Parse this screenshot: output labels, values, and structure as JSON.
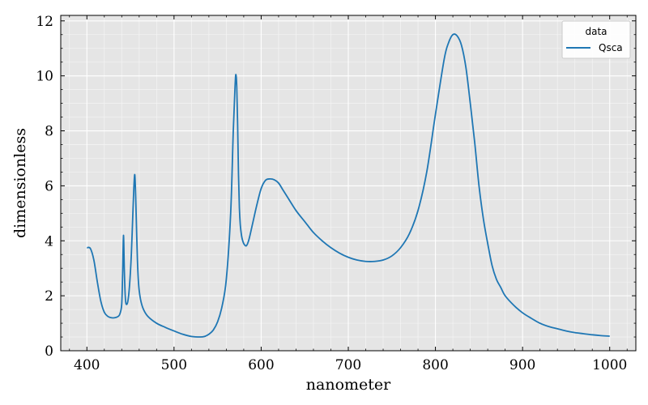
{
  "chart_data": {
    "type": "line",
    "title": "",
    "xlabel": "nanometer",
    "ylabel": "dimensionless",
    "xlim": [
      370,
      1030
    ],
    "ylim": [
      0,
      12.2
    ],
    "x_ticks": [
      400,
      500,
      600,
      700,
      800,
      900,
      1000
    ],
    "y_ticks": [
      0,
      2,
      4,
      6,
      8,
      10,
      12
    ],
    "grid": true,
    "legend": {
      "title": "data",
      "position": "top-right",
      "entries": [
        "Qsca"
      ]
    },
    "colors": {
      "Qsca": "#1f77b4",
      "plot_background": "#e5e5e5",
      "grid": "#ffffff"
    },
    "series": [
      {
        "name": "Qsca",
        "x": [
          400,
          404,
          408,
          412,
          416,
          420,
          424,
          428,
          432,
          436,
          438,
          440,
          441,
          442,
          443,
          444,
          445,
          447,
          449,
          451,
          453,
          454,
          455,
          456,
          457,
          458,
          459,
          460,
          462,
          465,
          470,
          480,
          490,
          500,
          510,
          520,
          530,
          535,
          540,
          545,
          550,
          555,
          560,
          565,
          568,
          570,
          571,
          572,
          573,
          574,
          575,
          576,
          577,
          578,
          580,
          583,
          586,
          590,
          595,
          600,
          605,
          610,
          615,
          620,
          625,
          630,
          640,
          650,
          660,
          670,
          680,
          690,
          700,
          710,
          720,
          730,
          740,
          750,
          760,
          770,
          780,
          790,
          800,
          810,
          815,
          820,
          825,
          830,
          835,
          840,
          845,
          850,
          855,
          860,
          865,
          870,
          875,
          880,
          890,
          900,
          910,
          920,
          930,
          940,
          950,
          960,
          970,
          980,
          990,
          1000
        ],
        "y": [
          3.75,
          3.72,
          3.3,
          2.5,
          1.8,
          1.4,
          1.25,
          1.2,
          1.2,
          1.25,
          1.35,
          1.7,
          2.8,
          4.2,
          2.9,
          2.0,
          1.7,
          1.8,
          2.4,
          3.5,
          5.2,
          6.0,
          6.4,
          5.6,
          4.4,
          3.3,
          2.6,
          2.2,
          1.8,
          1.5,
          1.25,
          1.0,
          0.85,
          0.72,
          0.6,
          0.52,
          0.5,
          0.52,
          0.6,
          0.75,
          1.05,
          1.6,
          2.6,
          5.0,
          8.0,
          9.6,
          10.05,
          9.6,
          8.2,
          6.4,
          5.2,
          4.6,
          4.3,
          4.1,
          3.9,
          3.82,
          4.05,
          4.6,
          5.3,
          5.9,
          6.2,
          6.25,
          6.22,
          6.1,
          5.85,
          5.6,
          5.1,
          4.7,
          4.3,
          4.0,
          3.75,
          3.55,
          3.4,
          3.3,
          3.25,
          3.25,
          3.3,
          3.45,
          3.75,
          4.25,
          5.1,
          6.5,
          8.6,
          10.6,
          11.2,
          11.5,
          11.45,
          11.1,
          10.3,
          9.0,
          7.6,
          6.0,
          4.8,
          3.9,
          3.1,
          2.6,
          2.3,
          2.0,
          1.65,
          1.38,
          1.18,
          1.0,
          0.88,
          0.8,
          0.72,
          0.66,
          0.62,
          0.58,
          0.55,
          0.53
        ]
      }
    ]
  }
}
